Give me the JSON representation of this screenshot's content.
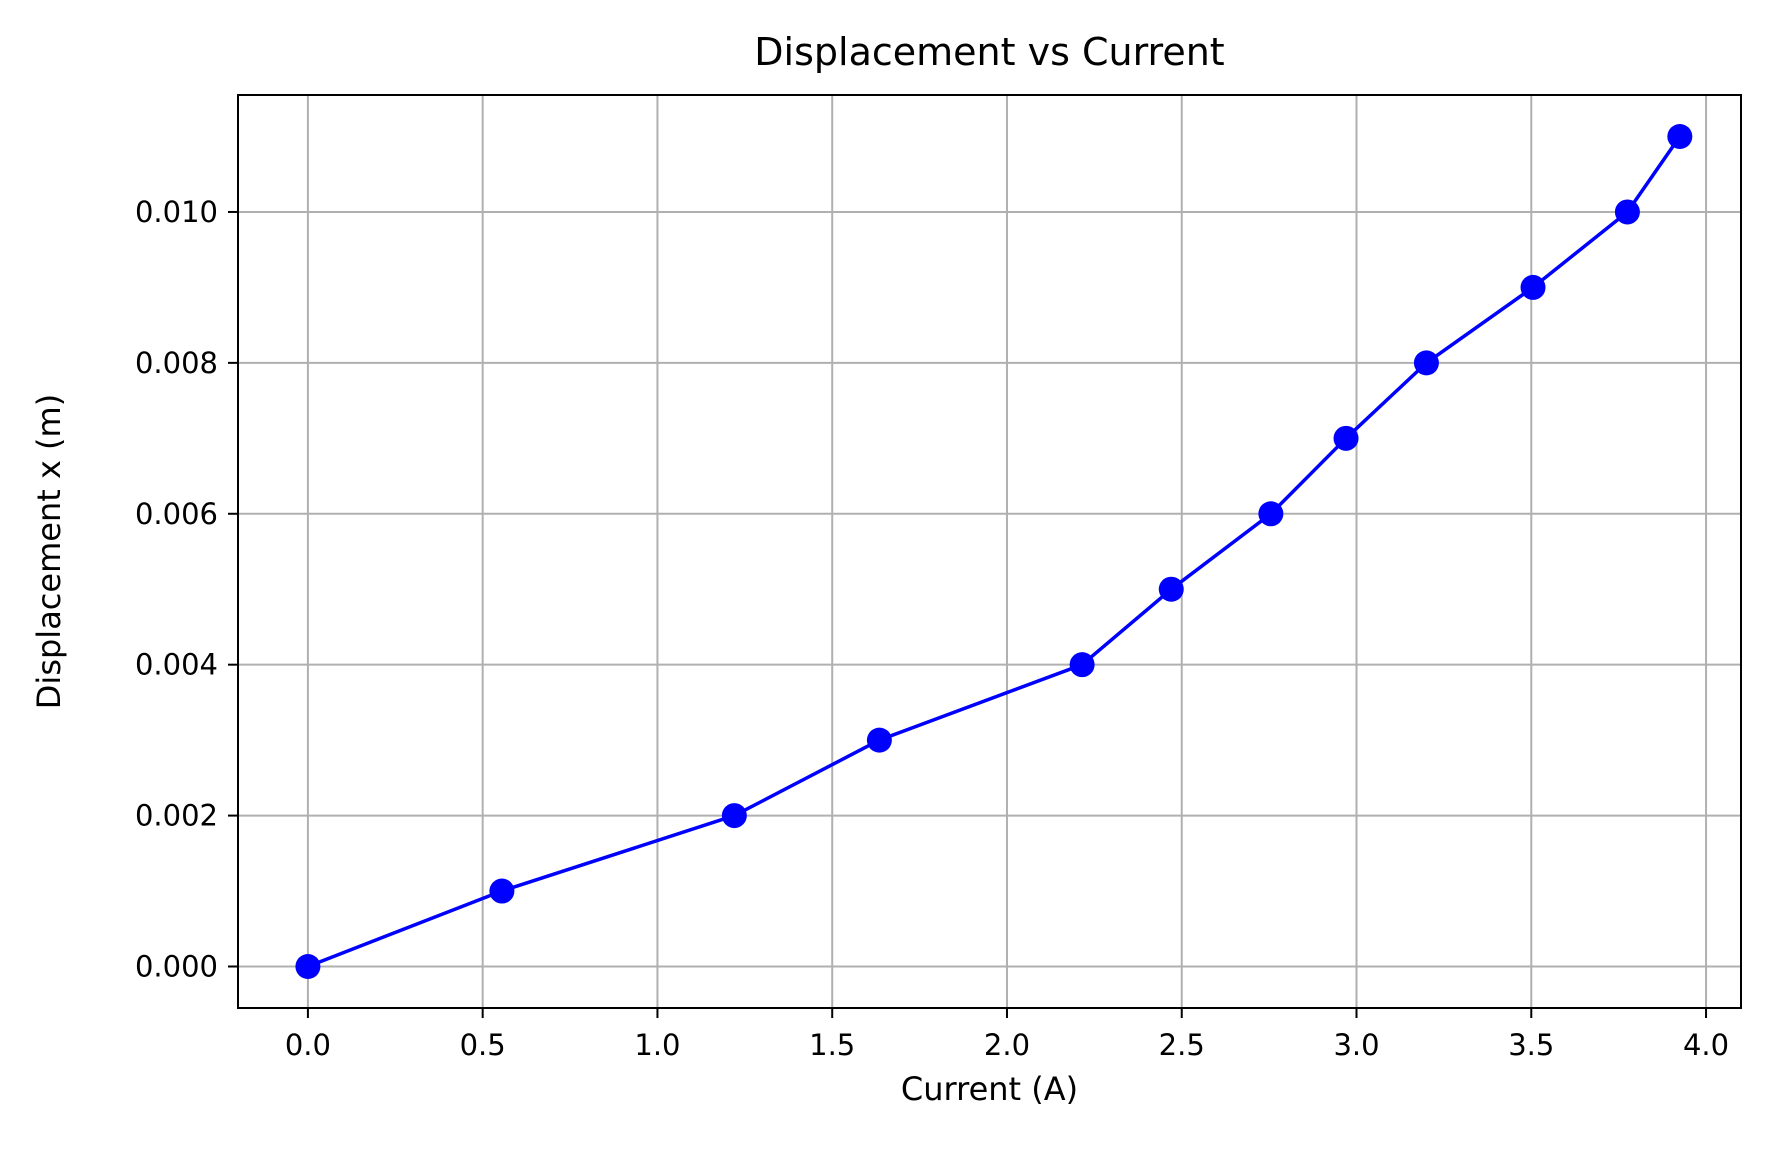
{
  "chart_data": {
    "type": "line",
    "title": "Displacement vs Current",
    "xlabel": "Current (A)",
    "ylabel": "Displacement x (m)",
    "xlim": [
      -0.2,
      4.1
    ],
    "ylim": [
      -0.00055,
      0.01155
    ],
    "xticks": [
      0.0,
      0.5,
      1.0,
      1.5,
      2.0,
      2.5,
      3.0,
      3.5,
      4.0
    ],
    "xtick_labels": [
      "0.0",
      "0.5",
      "1.0",
      "1.5",
      "2.0",
      "2.5",
      "3.0",
      "3.5",
      "4.0"
    ],
    "yticks": [
      0.0,
      0.002,
      0.004,
      0.006,
      0.008,
      0.01
    ],
    "ytick_labels": [
      "0.000",
      "0.002",
      "0.004",
      "0.006",
      "0.008",
      "0.010"
    ],
    "grid": true,
    "series": [
      {
        "color": "#0000ff",
        "marker": "circle",
        "x": [
          0.0,
          0.555,
          1.22,
          1.635,
          2.215,
          2.47,
          2.755,
          2.97,
          3.2,
          3.505,
          3.775,
          3.925
        ],
        "y": [
          0.0,
          0.001,
          0.002,
          0.003,
          0.004,
          0.005,
          0.006,
          0.007,
          0.008,
          0.009,
          0.01,
          0.011
        ]
      }
    ]
  }
}
